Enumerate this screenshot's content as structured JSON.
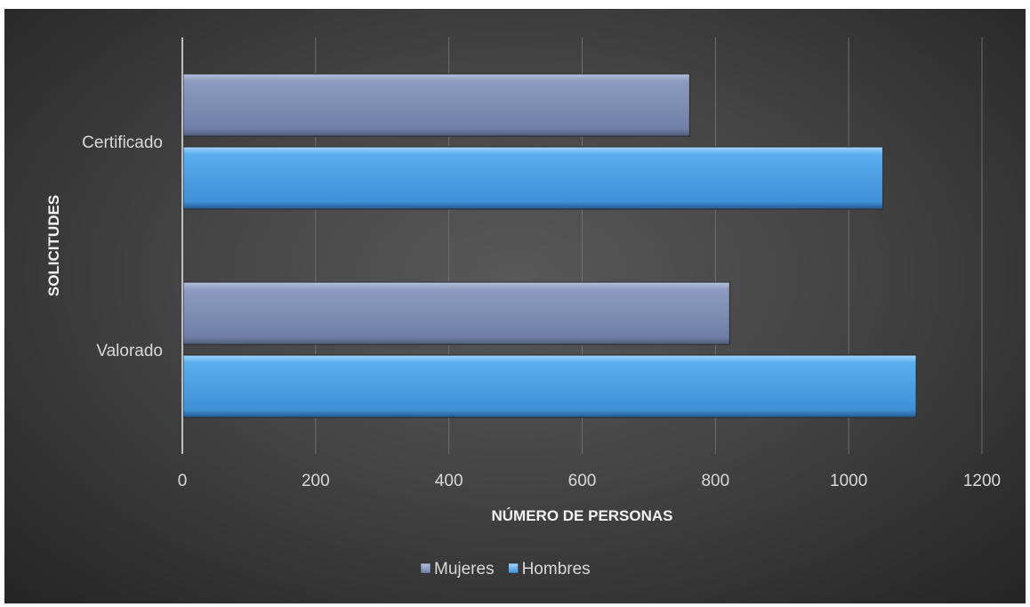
{
  "chart_data": {
    "type": "bar",
    "orientation": "horizontal",
    "title": "",
    "xlabel": "NÚMERO DE PERSONAS",
    "ylabel": "SOLICITUDES",
    "categories": [
      "Certificado",
      "Valorado"
    ],
    "series": [
      {
        "name": "Mujeres",
        "values": [
          760,
          820
        ],
        "color": "#7f8fb3"
      },
      {
        "name": "Hombres",
        "values": [
          1050,
          1100
        ],
        "color": "#4f9fe0"
      }
    ],
    "xlim": [
      0,
      1200
    ],
    "xticks": [
      "0",
      "200",
      "400",
      "600",
      "800",
      "1000",
      "1200"
    ],
    "grid": "vertical",
    "legend": "bottom-center"
  }
}
